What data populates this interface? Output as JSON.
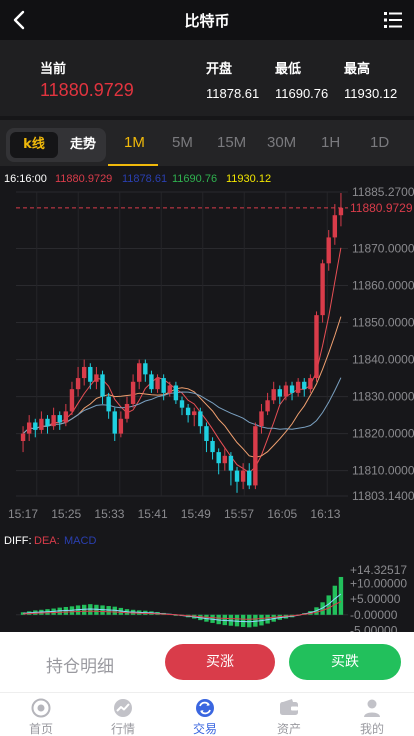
{
  "header": {
    "title": "比特币",
    "back_icon": "back-arrow-icon",
    "menu_icon": "list-menu-icon"
  },
  "quote": {
    "current_label": "当前",
    "current_value": "11880.9729",
    "open_label": "开盘",
    "open_value": "11878.61",
    "low_label": "最低",
    "low_value": "11690.76",
    "high_label": "最高",
    "high_value": "11930.12"
  },
  "tabs": {
    "kline_label": "k线",
    "trend_label": "走势",
    "intervals": [
      "1M",
      "5M",
      "15M",
      "30M",
      "1H",
      "1D"
    ],
    "active_interval": "1M"
  },
  "colors": {
    "up": "#d93c4a",
    "down": "#1fd0e0",
    "accent": "#f0b90b",
    "green": "#22c05c"
  },
  "chart_data": {
    "type": "candlestick",
    "info": {
      "time": "16:16:00",
      "v1": "11880.9729",
      "v2": "11878.61",
      "v3": "11690.76",
      "v4": "11930.12"
    },
    "price_axis": {
      "ylim": [
        11803.14,
        11885.27
      ],
      "ticks": [
        "11885.2700",
        "11870.0000",
        "11860.0000",
        "11850.0000",
        "11840.0000",
        "11830.0000",
        "11820.0000",
        "11810.0000",
        "11803.1400"
      ],
      "current_label": "11880.9729"
    },
    "time_labels": [
      "15:17",
      "15:25",
      "15:33",
      "15:41",
      "15:49",
      "15:57",
      "16:05",
      "16:13"
    ],
    "candles": [
      [
        11818,
        11820,
        11815,
        11822
      ],
      [
        11820,
        11823,
        11818,
        11825
      ],
      [
        11823,
        11821,
        11819,
        11824
      ],
      [
        11821,
        11824,
        11820,
        11826
      ],
      [
        11824,
        11822,
        11820,
        11825
      ],
      [
        11822,
        11825,
        11821,
        11827
      ],
      [
        11825,
        11823,
        11821,
        11826
      ],
      [
        11823,
        11826,
        11822,
        11828
      ],
      [
        11826,
        11832,
        11825,
        11834
      ],
      [
        11832,
        11835,
        11830,
        11838
      ],
      [
        11835,
        11838,
        11833,
        11840
      ],
      [
        11838,
        11834,
        11832,
        11839
      ],
      [
        11834,
        11836,
        11832,
        11838
      ],
      [
        11836,
        11830,
        11828,
        11837
      ],
      [
        11830,
        11826,
        11824,
        11831
      ],
      [
        11826,
        11820,
        11818,
        11827
      ],
      [
        11820,
        11824,
        11819,
        11826
      ],
      [
        11824,
        11828,
        11823,
        11830
      ],
      [
        11828,
        11834,
        11827,
        11836
      ],
      [
        11834,
        11839,
        11832,
        11840
      ],
      [
        11839,
        11836,
        11834,
        11840
      ],
      [
        11836,
        11832,
        11831,
        11837
      ],
      [
        11832,
        11835,
        11831,
        11836
      ],
      [
        11835,
        11831,
        11829,
        11836
      ],
      [
        11831,
        11833,
        11830,
        11834
      ],
      [
        11833,
        11829,
        11828,
        11834
      ],
      [
        11829,
        11827,
        11825,
        11830
      ],
      [
        11827,
        11825,
        11823,
        11828
      ],
      [
        11825,
        11826,
        11822,
        11827
      ],
      [
        11826,
        11822,
        11820,
        11827
      ],
      [
        11822,
        11818,
        11815,
        11823
      ],
      [
        11818,
        11815,
        11813,
        11819
      ],
      [
        11815,
        11812,
        11809,
        11816
      ],
      [
        11812,
        11814,
        11810,
        11816
      ],
      [
        11814,
        11810,
        11806,
        11815
      ],
      [
        11810,
        11807,
        11804,
        11811
      ],
      [
        11807,
        11810,
        11805,
        11812
      ],
      [
        11810,
        11806,
        11805,
        11812
      ],
      [
        11806,
        11822,
        11805,
        11823
      ],
      [
        11822,
        11826,
        11820,
        11828
      ],
      [
        11826,
        11829,
        11825,
        11831
      ],
      [
        11829,
        11832,
        11828,
        11834
      ],
      [
        11832,
        11830,
        11828,
        11833
      ],
      [
        11830,
        11833,
        11829,
        11834
      ],
      [
        11833,
        11831,
        11829,
        11834
      ],
      [
        11831,
        11834,
        11830,
        11835
      ],
      [
        11834,
        11832,
        11830,
        11835
      ],
      [
        11832,
        11835,
        11831,
        11836
      ],
      [
        11835,
        11852,
        11834,
        11853
      ],
      [
        11852,
        11866,
        11850,
        11867
      ],
      [
        11866,
        11873,
        11864,
        11875
      ],
      [
        11873,
        11879,
        11871,
        11882
      ],
      [
        11879,
        11881,
        11876,
        11885
      ]
    ],
    "macd": {
      "label": "DIFF:",
      "dea_label": "DEA:",
      "macd_label": "MACD",
      "ticks": [
        "+14.32517",
        "+10.00000",
        "+5.00000",
        "-0.00000",
        "-5.00000"
      ],
      "ylim": [
        -5.5,
        14.32517
      ],
      "hist": [
        0.8,
        1.1,
        1.4,
        1.6,
        1.8,
        2,
        2.3,
        2.5,
        2.7,
        3,
        3.2,
        3.4,
        3.2,
        3,
        2.8,
        2.6,
        2.2,
        1.8,
        1.6,
        1.4,
        1.3,
        1.1,
        0.9,
        0.6,
        0.3,
        0,
        -0.4,
        -0.8,
        -1.2,
        -1.7,
        -2.2,
        -2.6,
        -3,
        -3.3,
        -3.5,
        -3.7,
        -3.9,
        -4,
        -3.8,
        -3.4,
        -2.8,
        -2.2,
        -1.6,
        -1.2,
        -0.8,
        -0.3,
        0.5,
        1.2,
        2.4,
        4,
        6.2,
        9.3,
        12.1
      ]
    }
  },
  "actions": {
    "position_label": "持仓明细",
    "rise_label": "买涨",
    "fall_label": "买跌"
  },
  "tabbar": {
    "items": [
      {
        "label": "首页",
        "icon": "home-icon"
      },
      {
        "label": "行情",
        "icon": "market-icon"
      },
      {
        "label": "交易",
        "icon": "trade-icon"
      },
      {
        "label": "资产",
        "icon": "wallet-icon"
      },
      {
        "label": "我的",
        "icon": "user-icon"
      }
    ],
    "active": 2
  }
}
